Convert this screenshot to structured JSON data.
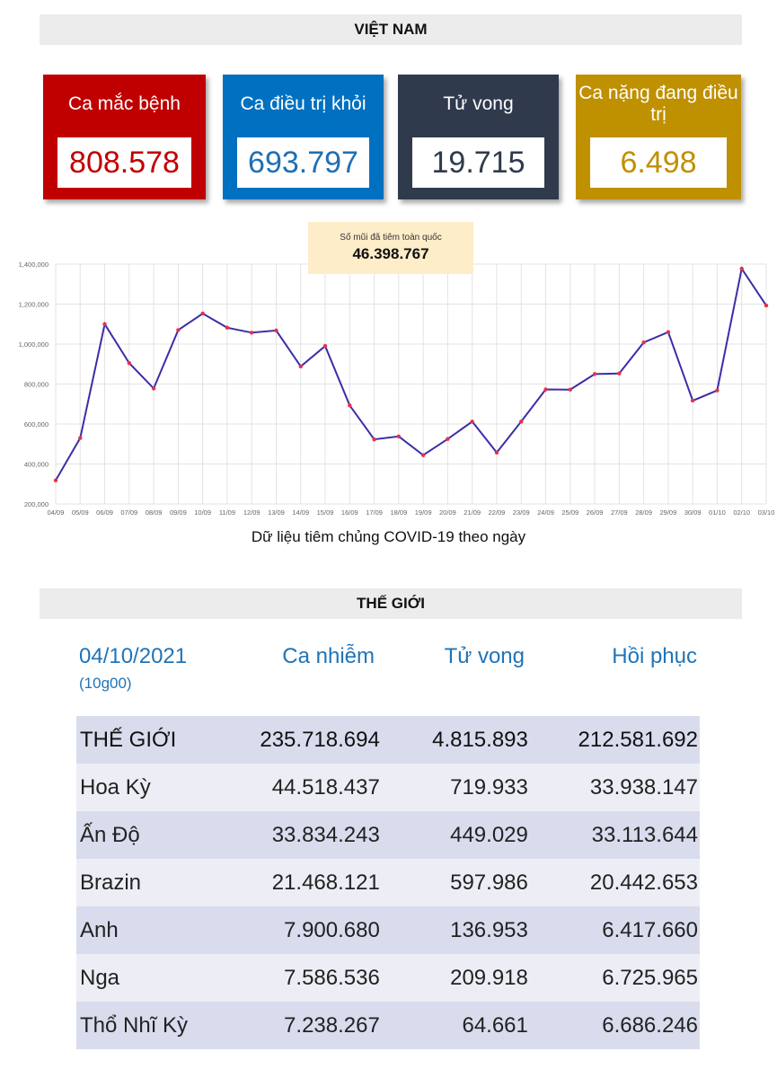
{
  "vietnam": {
    "title": "VIỆT NAM",
    "cards": [
      {
        "label": "Ca mắc bệnh",
        "value": "808.578"
      },
      {
        "label": "Ca điều trị khỏi",
        "value": "693.797"
      },
      {
        "label": "Tử vong",
        "value": "19.715"
      },
      {
        "label": "Ca nặng đang điều trị",
        "value": "6.498"
      }
    ],
    "colors": {
      "cases": "#c00000",
      "recovered": "#0070c0",
      "deaths": "#2f3a4d",
      "severe": "#bf9000"
    },
    "vaccination": {
      "label": "Số mũi đã tiêm toàn quốc",
      "value": "46.398.767"
    },
    "chart_caption": "Dữ liệu tiêm chủng COVID-19 theo ngày"
  },
  "chart_data": {
    "type": "line",
    "title": "",
    "xlabel": "",
    "ylabel": "",
    "ylim": [
      200000,
      1400000
    ],
    "yticks": [
      "200,000",
      "400,000",
      "600,000",
      "800,000",
      "1,000,000",
      "1,200,000",
      "1,400,000"
    ],
    "categories": [
      "04/09",
      "05/09",
      "06/09",
      "07/09",
      "08/09",
      "09/09",
      "10/09",
      "11/09",
      "12/09",
      "13/09",
      "14/09",
      "15/09",
      "16/09",
      "17/09",
      "18/09",
      "19/09",
      "20/09",
      "21/09",
      "22/09",
      "23/09",
      "24/09",
      "25/09",
      "26/09",
      "27/09",
      "28/09",
      "29/09",
      "30/09",
      "01/10",
      "02/10",
      "03/10"
    ],
    "series": [
      {
        "values": [
          318000,
          530000,
          1100000,
          905000,
          778000,
          1070000,
          1153000,
          1082000,
          1057000,
          1068000,
          888000,
          990000,
          693000,
          523000,
          538000,
          444000,
          525000,
          612000,
          457000,
          612000,
          773000,
          772000,
          850000,
          853000,
          1008000,
          1060000,
          717000,
          768000,
          1377000,
          1193000
        ],
        "color": "#3a2ea8",
        "marker_color": "#e8304a"
      }
    ],
    "grid": true
  },
  "world": {
    "title": "THẾ GIỚI",
    "date": "04/10/2021",
    "time": "(10g00)",
    "columns": [
      "Ca nhiễm",
      "Tử vong",
      "Hồi phục"
    ],
    "rows": [
      {
        "name": "THẾ GIỚI",
        "cases": "235.718.694",
        "deaths": "4.815.893",
        "recovered": "212.581.692"
      },
      {
        "name": "Hoa Kỳ",
        "cases": "44.518.437",
        "deaths": "719.933",
        "recovered": "33.938.147"
      },
      {
        "name": "Ấn Độ",
        "cases": "33.834.243",
        "deaths": "449.029",
        "recovered": "33.113.644"
      },
      {
        "name": "Brazin",
        "cases": "21.468.121",
        "deaths": "597.986",
        "recovered": "20.442.653"
      },
      {
        "name": "Anh",
        "cases": "7.900.680",
        "deaths": "136.953",
        "recovered": "6.417.660"
      },
      {
        "name": "Nga",
        "cases": "7.586.536",
        "deaths": "209.918",
        "recovered": "6.725.965"
      },
      {
        "name": "Thổ Nhĩ Kỳ",
        "cases": "7.238.267",
        "deaths": "64.661",
        "recovered": "6.686.246"
      }
    ]
  }
}
